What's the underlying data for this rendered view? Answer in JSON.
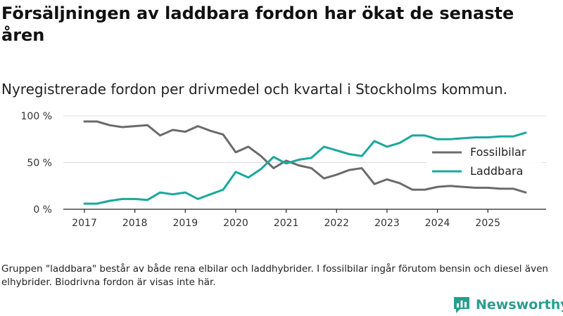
{
  "header": {
    "title": "Försäljningen av laddbara fordon har ökat de senaste åren",
    "subtitle": "Nyregistrerade fordon per drivmedel och kvartal i Stockholms kommun."
  },
  "footer": {
    "note": "Gruppen \"laddbara\" består av både rena elbilar och laddhybrider. I fossilbilar ingår förutom bensin och diesel även elhybrider. Biodrivna fordon är visas inte här.",
    "brand": "Newsworthy"
  },
  "chart_data": {
    "type": "line",
    "title": "Försäljningen av laddbara fordon har ökat de senaste åren",
    "subtitle": "Nyregistrerade fordon per drivmedel och kvartal i Stockholms kommun.",
    "xlabel": "",
    "ylabel": "",
    "ylim": [
      0,
      100
    ],
    "xlim": [
      2017,
      2025.75
    ],
    "yticks": [
      0,
      50,
      100
    ],
    "ytick_labels": [
      "0 %",
      "50 %",
      "100 %"
    ],
    "xticks": [
      2017,
      2018,
      2019,
      2020,
      2021,
      2022,
      2023,
      2024,
      2025
    ],
    "xtick_labels": [
      "2017",
      "2018",
      "2019",
      "2020",
      "2021",
      "2022",
      "2023",
      "2024",
      "2025"
    ],
    "grid": true,
    "legend_position": "right",
    "x": [
      2017,
      2017.25,
      2017.5,
      2017.75,
      2018,
      2018.25,
      2018.5,
      2018.75,
      2019,
      2019.25,
      2019.5,
      2019.75,
      2020,
      2020.25,
      2020.5,
      2020.75,
      2021,
      2021.25,
      2021.5,
      2021.75,
      2022,
      2022.25,
      2022.5,
      2022.75,
      2023,
      2023.25,
      2023.5,
      2023.75,
      2024,
      2024.25,
      2024.5,
      2024.75,
      2025,
      2025.25,
      2025.5,
      2025.75
    ],
    "series": [
      {
        "name": "Fossilbilar",
        "color": "#6b6b6b",
        "values": [
          94,
          94,
          90,
          88,
          89,
          90,
          79,
          85,
          83,
          89,
          84,
          80,
          61,
          67,
          57,
          44,
          52,
          47,
          44,
          33,
          37,
          42,
          44,
          27,
          32,
          28,
          21,
          21,
          24,
          25,
          24,
          23,
          23,
          22,
          22,
          18
        ]
      },
      {
        "name": "Laddbara",
        "color": "#1aa89c",
        "values": [
          6,
          6,
          9,
          11,
          11,
          10,
          18,
          16,
          18,
          11,
          16,
          21,
          40,
          34,
          43,
          56,
          49,
          53,
          55,
          67,
          63,
          59,
          57,
          73,
          67,
          71,
          79,
          79,
          75,
          75,
          76,
          77,
          77,
          78,
          78,
          82
        ]
      }
    ]
  }
}
